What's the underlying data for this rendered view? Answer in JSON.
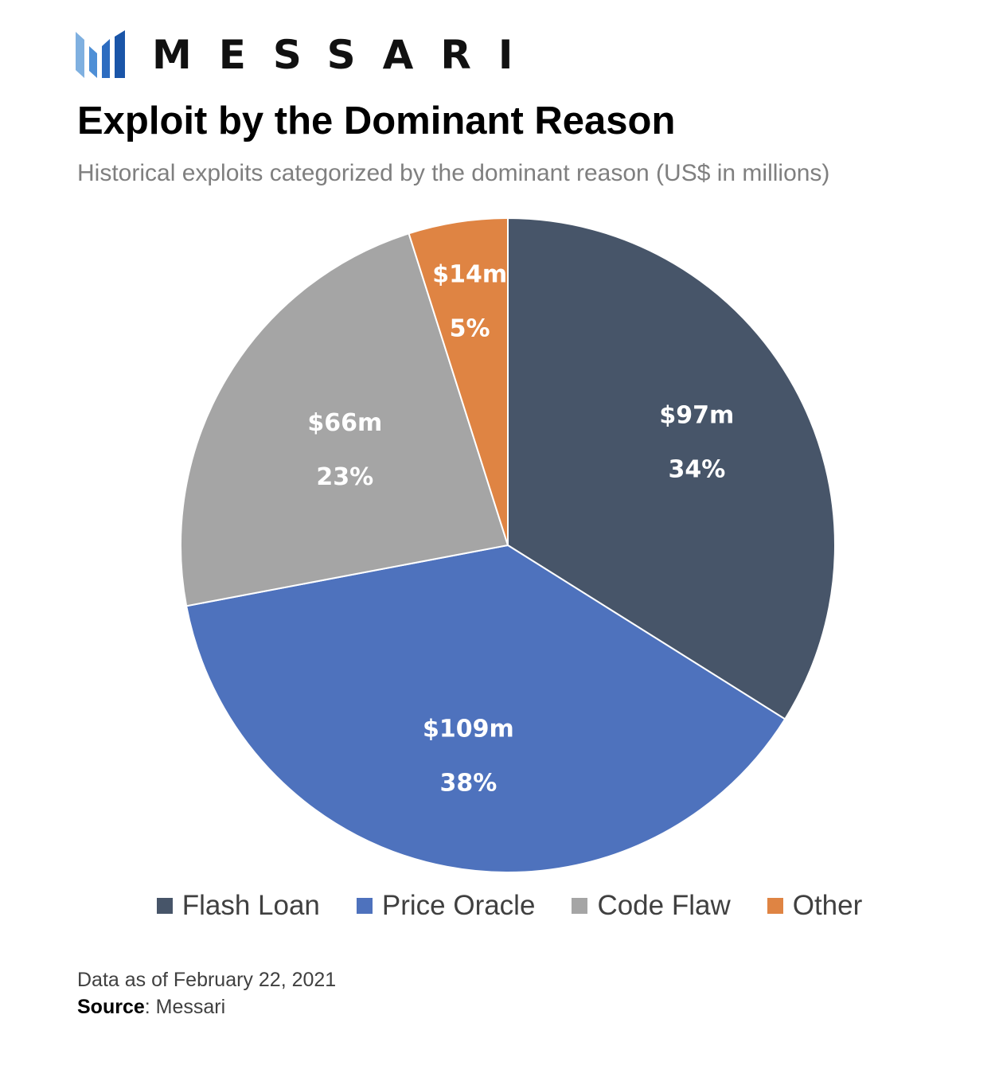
{
  "header": {
    "brand_name": "MESSARI",
    "brand_icon": "messari-logo-icon",
    "brand_colors": [
      "#6a9fd8",
      "#3d7cc9",
      "#1a55a8"
    ]
  },
  "chart_data": {
    "type": "pie",
    "title": "Exploit by the Dominant Reason",
    "subtitle": "Historical exploits categorized by the dominant reason (US$ in millions)",
    "unit": "US$ in millions",
    "slices": [
      {
        "name": "Flash Loan",
        "value": 97,
        "value_label": "$97m",
        "percent_label": "34%",
        "color": "#475569"
      },
      {
        "name": "Price Oracle",
        "value": 109,
        "value_label": "$109m",
        "percent_label": "38%",
        "color": "#4e72bd"
      },
      {
        "name": "Code Flaw",
        "value": 66,
        "value_label": "$66m",
        "percent_label": "23%",
        "color": "#a5a5a5"
      },
      {
        "name": "Other",
        "value": 14,
        "value_label": "$14m",
        "percent_label": "5%",
        "color": "#df8443"
      }
    ],
    "legend_position": "bottom"
  },
  "footer": {
    "date_note": "Data as of February 22, 2021",
    "source_label": "Source",
    "source_value": ": Messari"
  }
}
